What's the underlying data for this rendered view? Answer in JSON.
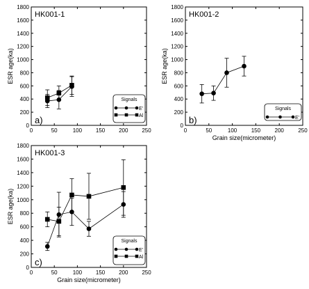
{
  "chart_data": [
    {
      "type": "scatter",
      "title": "HK001-1",
      "panel_label": "a)",
      "xlabel": "",
      "ylabel": "ESR age(ka)",
      "xlim": [
        0,
        250
      ],
      "ylim": [
        0,
        1800
      ],
      "x_ticks": [
        "0",
        "50",
        "100",
        "150",
        "200",
        "250"
      ],
      "y_ticks": [
        "0",
        "200",
        "400",
        "600",
        "800",
        "1000",
        "1200",
        "1400",
        "1600",
        "1800"
      ],
      "show_x_ticklabels": true,
      "legend": {
        "title": "Signals",
        "position": "bottom-right"
      },
      "series": [
        {
          "name": "E'",
          "marker": "circle",
          "x": [
            35,
            60,
            88
          ],
          "y": [
            370,
            390,
            590
          ],
          "err": [
            100,
            140,
            150
          ]
        },
        {
          "name": "Al",
          "marker": "square",
          "x": [
            35,
            60,
            88
          ],
          "y": [
            420,
            490,
            610
          ],
          "err": [
            120,
            110,
            140
          ]
        }
      ]
    },
    {
      "type": "scatter",
      "title": "HK001-2",
      "panel_label": "b)",
      "xlabel": "Grain size(micrometer)",
      "ylabel": "ESR age(ka)",
      "xlim": [
        0,
        250
      ],
      "ylim": [
        0,
        1800
      ],
      "x_ticks": [
        "0",
        "50",
        "100",
        "150",
        "200",
        "250"
      ],
      "y_ticks": [
        "0",
        "200",
        "400",
        "600",
        "800",
        "1000",
        "1200",
        "1400",
        "1600",
        "1800"
      ],
      "show_x_ticklabels": true,
      "legend": {
        "title": "Signals",
        "position": "bottom-right"
      },
      "series": [
        {
          "name": "E'",
          "marker": "circle",
          "x": [
            35,
            60,
            88,
            125
          ],
          "y": [
            480,
            490,
            800,
            900
          ],
          "err": [
            140,
            110,
            220,
            150
          ]
        }
      ]
    },
    {
      "type": "scatter",
      "title": "HK001-3",
      "panel_label": "c)",
      "xlabel": "Grain size(micrometer)",
      "ylabel": "ESR age(ka)",
      "xlim": [
        0,
        250
      ],
      "ylim": [
        0,
        1800
      ],
      "x_ticks": [
        "0",
        "50",
        "100",
        "150",
        "200",
        "250"
      ],
      "y_ticks": [
        "0",
        "200",
        "400",
        "600",
        "800",
        "1000",
        "1200",
        "1400",
        "1600",
        "1800"
      ],
      "show_x_ticklabels": true,
      "legend": {
        "title": "Signals",
        "position": "bottom-right"
      },
      "series": [
        {
          "name": "E'",
          "marker": "circle",
          "x": [
            35,
            60,
            88,
            125,
            200
          ],
          "y": [
            310,
            780,
            820,
            570,
            930
          ],
          "err": [
            60,
            330,
            200,
            110,
            190
          ]
        },
        {
          "name": "Al",
          "marker": "square",
          "x": [
            35,
            60,
            88,
            125,
            200
          ],
          "y": [
            710,
            680,
            1070,
            1050,
            1180
          ],
          "err": [
            110,
            210,
            240,
            340,
            410
          ]
        }
      ]
    }
  ]
}
